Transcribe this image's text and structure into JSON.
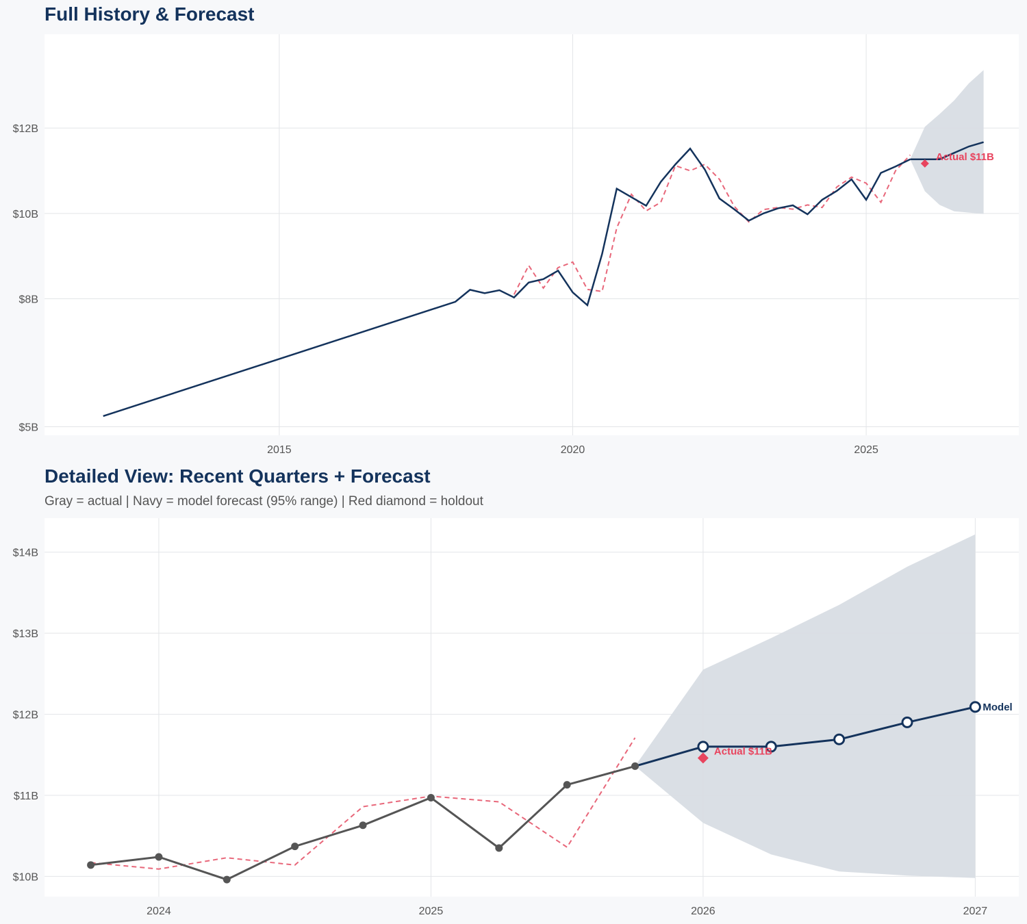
{
  "chart_data": [
    {
      "type": "line",
      "title": "Full History & Forecast",
      "subtitle": "",
      "xlabel": "",
      "ylabel": "",
      "xlim": [
        2011.0,
        2027.6
      ],
      "ylim": [
        4.8,
        14.2
      ],
      "x_ticks": [
        2015,
        2020,
        2025
      ],
      "x_tick_labels": [
        "2015",
        "2020",
        "2025"
      ],
      "y_ticks": [
        5,
        8,
        10,
        12
      ],
      "y_tick_labels": [
        "$5B",
        "$8B",
        "$10B",
        "$12B"
      ],
      "grid": true,
      "legend": "none",
      "colors": {
        "actual": "#14335c",
        "fitted": "#e8677a",
        "band": "#d8dde4",
        "holdout": "#e8445e"
      },
      "series": [
        {
          "role": "actual",
          "x": [
            2012.0,
            2018.0,
            2018.25,
            2018.5,
            2018.75,
            2019.0,
            2019.25,
            2019.5,
            2019.75,
            2020.0,
            2020.25,
            2020.5,
            2020.75,
            2021.0,
            2021.25,
            2021.5,
            2021.75,
            2022.0,
            2022.25,
            2022.5,
            2022.75,
            2023.0,
            2023.25,
            2023.5,
            2023.75,
            2024.0,
            2024.25,
            2024.5,
            2024.75,
            2025.0,
            2025.25,
            2025.5,
            2025.75
          ],
          "values": [
            5.25,
            7.93,
            8.21,
            8.13,
            8.2,
            8.03,
            8.38,
            8.46,
            8.66,
            8.15,
            7.85,
            9.05,
            10.58,
            10.38,
            10.18,
            10.74,
            11.15,
            11.52,
            11.03,
            10.35,
            10.1,
            9.83,
            10.0,
            10.12,
            10.19,
            9.98,
            10.32,
            10.53,
            10.8,
            10.32,
            10.95,
            11.1,
            11.27
          ]
        },
        {
          "role": "fitted",
          "x": [
            2019.0,
            2019.25,
            2019.5,
            2019.75,
            2020.0,
            2020.25,
            2020.5,
            2020.75,
            2021.0,
            2021.25,
            2021.5,
            2021.75,
            2022.0,
            2022.25,
            2022.5,
            2022.75,
            2023.0,
            2023.25,
            2023.5,
            2023.75,
            2024.0,
            2024.25,
            2024.5,
            2024.75,
            2025.0,
            2025.25,
            2025.5,
            2025.75
          ],
          "values": [
            8.1,
            8.78,
            8.25,
            8.73,
            8.86,
            8.22,
            8.17,
            9.66,
            10.45,
            10.06,
            10.26,
            11.12,
            11.0,
            11.15,
            10.8,
            10.17,
            9.8,
            10.09,
            10.14,
            10.1,
            10.2,
            10.14,
            10.62,
            10.85,
            10.71,
            10.26,
            11.0,
            11.37
          ]
        },
        {
          "role": "forecast",
          "x": [
            2025.75,
            2026.0,
            2026.25,
            2026.5,
            2026.75,
            2027.0
          ],
          "values": [
            11.27,
            11.27,
            11.27,
            11.42,
            11.57,
            11.67
          ]
        }
      ],
      "band": {
        "x": [
          2025.75,
          2026.0,
          2026.25,
          2026.5,
          2026.75,
          2027.0
        ],
        "upper": [
          11.27,
          12.03,
          12.33,
          12.65,
          13.05,
          13.36
        ],
        "lower": [
          11.27,
          10.52,
          10.2,
          10.05,
          10.02,
          9.99
        ]
      },
      "holdout": {
        "x": 2026.0,
        "value": 11.17,
        "label": "Actual $11B"
      }
    },
    {
      "type": "line",
      "title": "Detailed View: Recent Quarters + Forecast",
      "subtitle": "Gray = actual  |  Navy = model forecast (95% range)  |  Red diamond = holdout",
      "xlabel": "",
      "ylabel": "",
      "xlim": [
        2023.58,
        2027.16
      ],
      "ylim": [
        9.75,
        14.42
      ],
      "x_ticks": [
        2024,
        2025,
        2026,
        2027
      ],
      "x_tick_labels": [
        "2024",
        "2025",
        "2026",
        "2027"
      ],
      "y_ticks": [
        10,
        11,
        12,
        13,
        14
      ],
      "y_tick_labels": [
        "$10B",
        "$11B",
        "$12B",
        "$13B",
        "$14B"
      ],
      "grid": true,
      "legend": "none",
      "colors": {
        "actual": "#555555",
        "fitted": "#e8677a",
        "forecast": "#14335c",
        "band": "#d8dde4",
        "holdout": "#e8445e"
      },
      "series": [
        {
          "role": "actual",
          "x": [
            2023.75,
            2024.0,
            2024.25,
            2024.5,
            2024.75,
            2025.0,
            2025.25,
            2025.5,
            2025.75
          ],
          "values": [
            10.14,
            10.24,
            9.96,
            10.37,
            10.63,
            10.97,
            10.35,
            11.13,
            11.36
          ]
        },
        {
          "role": "fitted",
          "x": [
            2023.75,
            2024.0,
            2024.25,
            2024.5,
            2024.75,
            2025.0,
            2025.25,
            2025.5,
            2025.75
          ],
          "values": [
            10.17,
            10.09,
            10.23,
            10.14,
            10.86,
            10.99,
            10.92,
            10.36,
            11.71
          ]
        },
        {
          "role": "forecast",
          "name": "Model",
          "x": [
            2025.75,
            2026.0,
            2026.25,
            2026.5,
            2026.75,
            2027.0
          ],
          "values": [
            11.36,
            11.6,
            11.6,
            11.69,
            11.9,
            12.09
          ]
        }
      ],
      "band": {
        "x": [
          2025.75,
          2026.0,
          2026.25,
          2026.5,
          2026.75,
          2027.0
        ],
        "upper": [
          11.36,
          12.55,
          12.94,
          13.35,
          13.82,
          14.22
        ],
        "lower": [
          11.36,
          10.66,
          10.27,
          10.06,
          10.01,
          9.98
        ]
      },
      "holdout": {
        "x": 2026.0,
        "value": 11.46,
        "label": "Actual $11B"
      }
    }
  ]
}
